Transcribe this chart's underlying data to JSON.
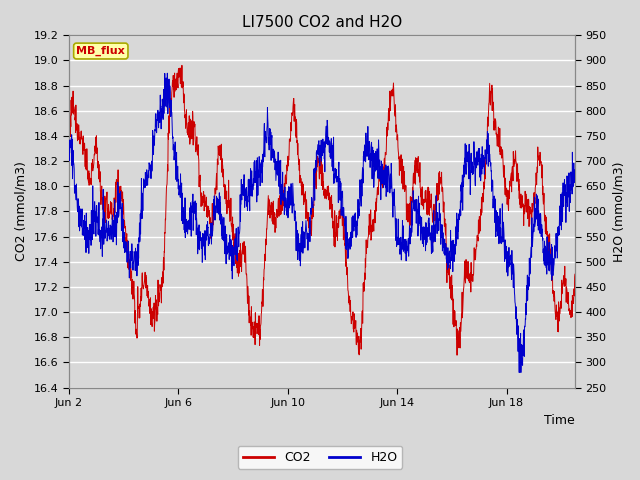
{
  "title": "LI7500 CO2 and H2O",
  "xlabel": "Time",
  "ylabel_left": "CO2 (mmol/m3)",
  "ylabel_right": "H2O (mmol/m3)",
  "co2_ylim": [
    16.4,
    19.2
  ],
  "h2o_ylim": [
    250,
    950
  ],
  "co2_yticks": [
    16.4,
    16.6,
    16.8,
    17.0,
    17.2,
    17.4,
    17.6,
    17.8,
    18.0,
    18.2,
    18.4,
    18.6,
    18.8,
    19.0,
    19.2
  ],
  "h2o_yticks": [
    250,
    300,
    350,
    400,
    450,
    500,
    550,
    600,
    650,
    700,
    750,
    800,
    850,
    900,
    950
  ],
  "xtick_labels": [
    "Jun 2",
    "Jun 6",
    "Jun 10",
    "Jun 14",
    "Jun 18"
  ],
  "xtick_positions": [
    2,
    6,
    10,
    14,
    18
  ],
  "co2_color": "#cc0000",
  "h2o_color": "#0000cc",
  "background_color": "#d8d8d8",
  "plot_bg_color": "#d8d8d8",
  "grid_color": "#ffffff",
  "legend_label_co2": "CO2",
  "legend_label_h2o": "H2O",
  "mb_flux_bg": "#ffffaa",
  "mb_flux_border": "#aaaa00",
  "mb_flux_text_color": "#cc0000",
  "title_fontsize": 11,
  "axis_label_fontsize": 9,
  "tick_fontsize": 8,
  "legend_fontsize": 9
}
